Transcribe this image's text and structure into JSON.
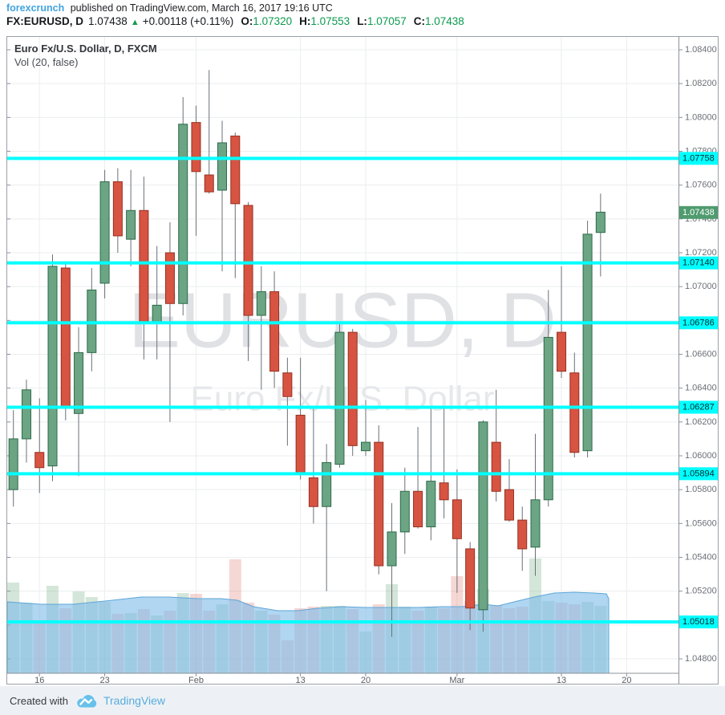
{
  "header": {
    "source": "forexcrunch",
    "published": "published on TradingView.com, March 16, 2017 19:16 UTC",
    "symbol": "FX:EURUSD, D",
    "last": "1.07438",
    "up_arrow": "▲",
    "change": "+0.00118 (+0.11%)",
    "o_label": "O:",
    "o_value": "1.07320",
    "h_label": "H:",
    "h_value": "1.07553",
    "l_label": "L:",
    "l_value": "1.07057",
    "c_label": "C:",
    "c_value": "1.07438"
  },
  "legend": {
    "title": "Euro Fx/U.S. Dollar, D, FXCM",
    "indicator": "Vol (20, false)"
  },
  "watermark": {
    "line1": "EURUSD, D",
    "line2": "Euro Fx/U.S. Dollar"
  },
  "footer": {
    "created_with": "Created with",
    "brand": "TradingView"
  },
  "colors": {
    "up_fill": "#6ba583",
    "up_border": "#2e6a4b",
    "down_fill": "#d75442",
    "down_border": "#96301f",
    "wick": "#6a7077",
    "level_line": "#00ffff",
    "level_text": "#002b30",
    "last_badge_bg": "#4f9b6e",
    "last_badge_text": "#ffffff",
    "grid": "#ebedef",
    "axis_line": "#8c9199",
    "tick_text": "#6b6f76",
    "watermark_1": "#dfe1e5",
    "watermark_2": "#e7e8eb",
    "vol_up": "rgba(121,176,136,0.32)",
    "vol_down": "rgba(222,124,113,0.30)",
    "ma_fill": "rgba(124,187,233,0.60)",
    "ma_stroke": "#5ea5d7"
  },
  "chart_data": {
    "type": "candlestick",
    "title": "Euro Fx/U.S. Dollar, D, FXCM",
    "symbol": "EURUSD",
    "timeframe": "D",
    "indicator": "Vol (20, false)",
    "y_axis": {
      "min": 1.048,
      "max": 1.084,
      "step": 0.002,
      "ticks": [
        {
          "v": 1.084,
          "label": "1.08400"
        },
        {
          "v": 1.082,
          "label": "1.08200"
        },
        {
          "v": 1.08,
          "label": "1.08000"
        },
        {
          "v": 1.078,
          "label": "1.07800"
        },
        {
          "v": 1.076,
          "label": "1.07600"
        },
        {
          "v": 1.074,
          "label": "1.07400"
        },
        {
          "v": 1.072,
          "label": "1.07200"
        },
        {
          "v": 1.07,
          "label": "1.07000"
        },
        {
          "v": 1.068,
          "label": "1.06800"
        },
        {
          "v": 1.066,
          "label": "1.06600"
        },
        {
          "v": 1.064,
          "label": "1.06400"
        },
        {
          "v": 1.062,
          "label": "1.06200"
        },
        {
          "v": 1.06,
          "label": "1.06000"
        },
        {
          "v": 1.058,
          "label": "1.05800"
        },
        {
          "v": 1.056,
          "label": "1.05600"
        },
        {
          "v": 1.054,
          "label": "1.05400"
        },
        {
          "v": 1.052,
          "label": "1.05200"
        },
        {
          "v": 1.05,
          "label": "1.05000"
        },
        {
          "v": 1.048,
          "label": "1.04800"
        }
      ]
    },
    "x_axis": {
      "ticks": [
        {
          "label": "16",
          "slot": 2
        },
        {
          "label": "23",
          "slot": 7
        },
        {
          "label": "Feb",
          "slot": 14
        },
        {
          "label": "13",
          "slot": 22
        },
        {
          "label": "20",
          "slot": 27
        },
        {
          "label": "Mar",
          "slot": 34
        },
        {
          "label": "13",
          "slot": 42
        },
        {
          "label": "20",
          "slot": 47
        }
      ]
    },
    "levels": [
      {
        "price": 1.07758,
        "label": "1.07758"
      },
      {
        "price": 1.0714,
        "label": "1.07140"
      },
      {
        "price": 1.06786,
        "label": "1.06786"
      },
      {
        "price": 1.06287,
        "label": "1.06287"
      },
      {
        "price": 1.05894,
        "label": "1.05894"
      },
      {
        "price": 1.05018,
        "label": "1.05018"
      }
    ],
    "last_price": {
      "price": 1.07438,
      "label": "1.07438"
    },
    "candles": [
      {
        "d": "Jan 12",
        "o": 1.058,
        "h": 1.0627,
        "l": 1.057,
        "c": 1.061,
        "v": 113
      },
      {
        "d": "Jan 13",
        "o": 1.061,
        "h": 1.0645,
        "l": 1.0596,
        "c": 1.0639,
        "v": 88
      },
      {
        "d": "Jan 16",
        "o": 1.0602,
        "h": 1.0634,
        "l": 1.0578,
        "c": 1.0593,
        "v": 66
      },
      {
        "d": "Jan 17",
        "o": 1.0594,
        "h": 1.0719,
        "l": 1.0585,
        "c": 1.0712,
        "v": 109
      },
      {
        "d": "Jan 18",
        "o": 1.0711,
        "h": 1.0715,
        "l": 1.0621,
        "c": 1.0629,
        "v": 81
      },
      {
        "d": "Jan 19",
        "o": 1.0625,
        "h": 1.0676,
        "l": 1.0588,
        "c": 1.0661,
        "v": 102
      },
      {
        "d": "Jan 20",
        "o": 1.0661,
        "h": 1.0711,
        "l": 1.065,
        "c": 1.0698,
        "v": 95
      },
      {
        "d": "Jan 23",
        "o": 1.0702,
        "h": 1.0769,
        "l": 1.0693,
        "c": 1.0762,
        "v": 89
      },
      {
        "d": "Jan 24",
        "o": 1.0762,
        "h": 1.077,
        "l": 1.072,
        "c": 1.073,
        "v": 74
      },
      {
        "d": "Jan 25",
        "o": 1.0728,
        "h": 1.0769,
        "l": 1.0712,
        "c": 1.0745,
        "v": 75
      },
      {
        "d": "Jan 26",
        "o": 1.0745,
        "h": 1.0765,
        "l": 1.0657,
        "c": 1.0679,
        "v": 80
      },
      {
        "d": "Jan 27",
        "o": 1.0679,
        "h": 1.0724,
        "l": 1.0657,
        "c": 1.0689,
        "v": 72
      },
      {
        "d": "Jan 30",
        "o": 1.072,
        "h": 1.0738,
        "l": 1.062,
        "c": 1.069,
        "v": 78
      },
      {
        "d": "Jan 31",
        "o": 1.069,
        "h": 1.0812,
        "l": 1.0683,
        "c": 1.0796,
        "v": 100
      },
      {
        "d": "Feb 1",
        "o": 1.0797,
        "h": 1.0807,
        "l": 1.073,
        "c": 1.0768,
        "v": 99
      },
      {
        "d": "Feb 2",
        "o": 1.0766,
        "h": 1.0828,
        "l": 1.0755,
        "c": 1.0756,
        "v": 78
      },
      {
        "d": "Feb 3",
        "o": 1.0757,
        "h": 1.0798,
        "l": 1.0709,
        "c": 1.0785,
        "v": 86
      },
      {
        "d": "Feb 6",
        "o": 1.0789,
        "h": 1.0791,
        "l": 1.0705,
        "c": 1.0749,
        "v": 142
      },
      {
        "d": "Feb 7",
        "o": 1.0748,
        "h": 1.075,
        "l": 1.0656,
        "c": 1.0683,
        "v": 88
      },
      {
        "d": "Feb 8",
        "o": 1.0683,
        "h": 1.0712,
        "l": 1.0639,
        "c": 1.0697,
        "v": 78
      },
      {
        "d": "Feb 9",
        "o": 1.0697,
        "h": 1.0709,
        "l": 1.064,
        "c": 1.065,
        "v": 73
      },
      {
        "d": "Feb 10",
        "o": 1.0649,
        "h": 1.0658,
        "l": 1.0606,
        "c": 1.0635,
        "v": 41
      },
      {
        "d": "Feb 13",
        "o": 1.0624,
        "h": 1.0658,
        "l": 1.0586,
        "c": 1.0589,
        "v": 81
      },
      {
        "d": "Feb 14",
        "o": 1.0587,
        "h": 1.0629,
        "l": 1.056,
        "c": 1.057,
        "v": 83
      },
      {
        "d": "Feb 15",
        "o": 1.057,
        "h": 1.0607,
        "l": 1.052,
        "c": 1.0596,
        "v": 84
      },
      {
        "d": "Feb 16",
        "o": 1.0595,
        "h": 1.0679,
        "l": 1.0593,
        "c": 1.0673,
        "v": 84
      },
      {
        "d": "Feb 17",
        "o": 1.0673,
        "h": 1.0675,
        "l": 1.06,
        "c": 1.0606,
        "v": 80
      },
      {
        "d": "Feb 20",
        "o": 1.0603,
        "h": 1.0633,
        "l": 1.06,
        "c": 1.0608,
        "v": 52
      },
      {
        "d": "Feb 21",
        "o": 1.0608,
        "h": 1.0618,
        "l": 1.053,
        "c": 1.0535,
        "v": 86
      },
      {
        "d": "Feb 22",
        "o": 1.0535,
        "h": 1.0572,
        "l": 1.0493,
        "c": 1.0555,
        "v": 111
      },
      {
        "d": "Feb 23",
        "o": 1.0555,
        "h": 1.0593,
        "l": 1.0542,
        "c": 1.0579,
        "v": 83
      },
      {
        "d": "Feb 24",
        "o": 1.0579,
        "h": 1.0617,
        "l": 1.0557,
        "c": 1.0558,
        "v": 78
      },
      {
        "d": "Feb 27",
        "o": 1.0558,
        "h": 1.0629,
        "l": 1.055,
        "c": 1.0585,
        "v": 83
      },
      {
        "d": "Feb 28",
        "o": 1.0584,
        "h": 1.0629,
        "l": 1.0563,
        "c": 1.0574,
        "v": 81
      },
      {
        "d": "Mar 1",
        "o": 1.0574,
        "h": 1.0592,
        "l": 1.0519,
        "c": 1.0551,
        "v": 121
      },
      {
        "d": "Mar 2",
        "o": 1.0545,
        "h": 1.0549,
        "l": 1.0497,
        "c": 1.051,
        "v": 90
      },
      {
        "d": "Mar 3",
        "o": 1.0509,
        "h": 1.0621,
        "l": 1.0496,
        "c": 1.062,
        "v": 105
      },
      {
        "d": "Mar 6",
        "o": 1.0608,
        "h": 1.0639,
        "l": 1.0573,
        "c": 1.0579,
        "v": 85
      },
      {
        "d": "Mar 7",
        "o": 1.058,
        "h": 1.0598,
        "l": 1.0561,
        "c": 1.0562,
        "v": 81
      },
      {
        "d": "Mar 8",
        "o": 1.0562,
        "h": 1.057,
        "l": 1.0532,
        "c": 1.0545,
        "v": 83
      },
      {
        "d": "Mar 9",
        "o": 1.0546,
        "h": 1.0613,
        "l": 1.0529,
        "c": 1.0574,
        "v": 143
      },
      {
        "d": "Mar 10",
        "o": 1.0574,
        "h": 1.0698,
        "l": 1.057,
        "c": 1.067,
        "v": 90
      },
      {
        "d": "Mar 13",
        "o": 1.0673,
        "h": 1.0712,
        "l": 1.0646,
        "c": 1.065,
        "v": 88
      },
      {
        "d": "Mar 14",
        "o": 1.0649,
        "h": 1.0661,
        "l": 1.0599,
        "c": 1.0602,
        "v": 86
      },
      {
        "d": "Mar 15",
        "o": 1.0603,
        "h": 1.0739,
        "l": 1.0599,
        "c": 1.0731,
        "v": 89
      },
      {
        "d": "Mar 16",
        "o": 1.0732,
        "h": 1.0755,
        "l": 1.0706,
        "c": 1.0744,
        "v": 84
      }
    ],
    "volume_ma_area": [
      [
        0,
        704
      ],
      [
        42,
        707
      ],
      [
        82,
        707
      ],
      [
        122,
        703
      ],
      [
        167,
        698
      ],
      [
        202,
        698
      ],
      [
        237,
        700
      ],
      [
        267,
        700
      ],
      [
        287,
        702
      ],
      [
        307,
        710
      ],
      [
        337,
        715
      ],
      [
        362,
        715
      ],
      [
        387,
        712
      ],
      [
        417,
        710
      ],
      [
        447,
        711
      ],
      [
        482,
        711
      ],
      [
        512,
        711
      ],
      [
        542,
        710
      ],
      [
        567,
        710
      ],
      [
        594,
        707
      ],
      [
        612,
        709
      ],
      [
        632,
        704
      ],
      [
        657,
        698
      ],
      [
        682,
        693
      ],
      [
        707,
        692
      ],
      [
        732,
        693
      ],
      [
        747,
        694
      ],
      [
        750,
        700
      ]
    ]
  }
}
